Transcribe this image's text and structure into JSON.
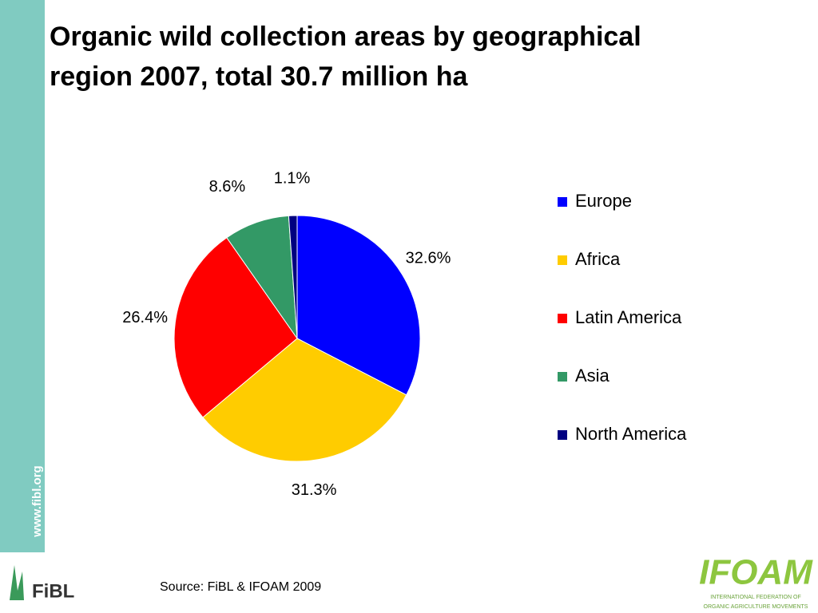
{
  "chart_data": {
    "type": "pie",
    "title": "Organic wild collection areas by geographical region 2007, total 30.7 million ha",
    "categories": [
      "Europe",
      "Africa",
      "Latin America",
      "Asia",
      "North America"
    ],
    "values": [
      32.6,
      31.3,
      26.4,
      8.6,
      1.1
    ],
    "value_labels": [
      "32.6%",
      "31.3%",
      "26.4%",
      "8.6%",
      "1.1%"
    ],
    "colors": [
      "#0000ff",
      "#ffcc00",
      "#ff0000",
      "#339966",
      "#000080"
    ],
    "legend": "right"
  },
  "source": "Source: FiBL & IFOAM  2009",
  "sidebar_text": "www.fibl.org",
  "logo_left": "FiBL",
  "logo_right": {
    "name": "IFOAM",
    "line1": "INTERNATIONAL FEDERATION OF",
    "line2": "ORGANIC AGRICULTURE MOVEMENTS"
  }
}
